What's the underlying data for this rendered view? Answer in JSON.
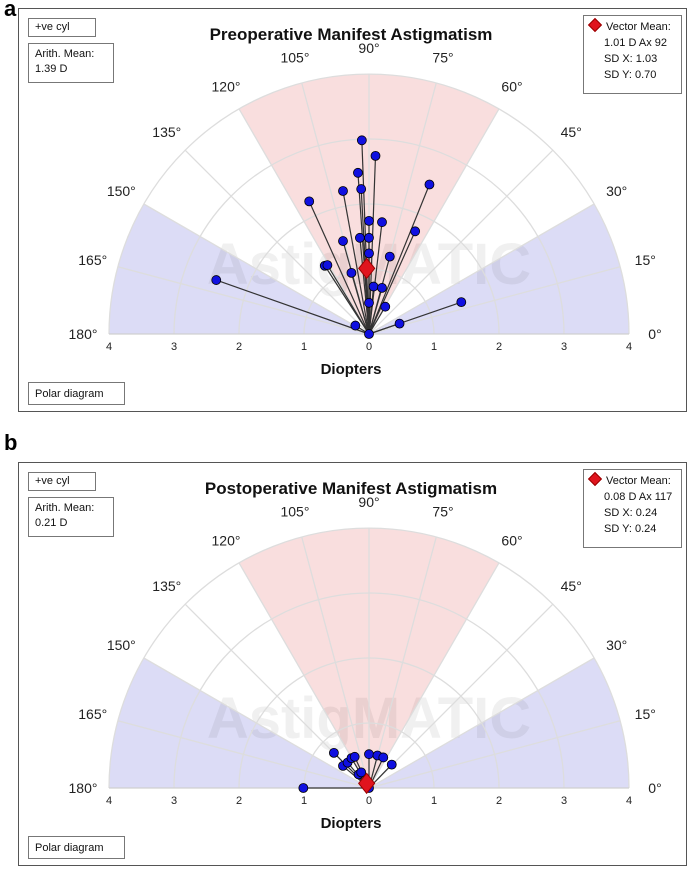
{
  "panels": [
    {
      "letter": "a",
      "title": "Preoperative Manifest Astigmatism",
      "cyl": "+ve cyl",
      "mean_label": "Arith. Mean:",
      "mean_value": "1.39 D",
      "legend": {
        "label": "Vector Mean:",
        "value": "1.01 D Ax 92",
        "sdx": "SD X: 1.03",
        "sdy": "SD Y: 0.70"
      },
      "footer": "Polar diagram"
    },
    {
      "letter": "b",
      "title": "Postoperative Manifest Astigmatism",
      "cyl": "+ve cyl",
      "mean_label": "Arith. Mean:",
      "mean_value": "0.21 D",
      "legend": {
        "label": "Vector Mean:",
        "value": "0.08 D Ax 117",
        "sdx": "SD X: 0.24",
        "sdy": "SD Y: 0.24"
      },
      "footer": "Polar diagram"
    }
  ],
  "watermark": "AstigMATIC",
  "colors": {
    "point": "#1010e0",
    "mean": "#e0141e",
    "red_zone": "#f9dede",
    "blue_zone": "#dcdcf6"
  },
  "chart_data": [
    {
      "type": "scatter",
      "title": "Preoperative Manifest Astigmatism",
      "xlabel": "Diopters",
      "rlim": [
        0,
        4
      ],
      "angle_ticks": [
        "180°",
        "165°",
        "150°",
        "135°",
        "120°",
        "105°",
        "90°",
        "75°",
        "60°",
        "45°",
        "30°",
        "15°",
        "0°"
      ],
      "x_ticks": [
        "4",
        "3",
        "2",
        "1",
        "0",
        "1",
        "2",
        "3",
        "4"
      ],
      "points": [
        [
          -0.11,
          2.98
        ],
        [
          0.1,
          2.74
        ],
        [
          -0.17,
          2.48
        ],
        [
          0.93,
          2.3
        ],
        [
          -0.4,
          2.2
        ],
        [
          -0.12,
          2.23
        ],
        [
          -0.92,
          2.04
        ],
        [
          0,
          1.74
        ],
        [
          0.2,
          1.72
        ],
        [
          0.71,
          1.58
        ],
        [
          -0.4,
          1.43
        ],
        [
          -0.14,
          1.48
        ],
        [
          0,
          1.48
        ],
        [
          0,
          1.24
        ],
        [
          0.32,
          1.19
        ],
        [
          -0.68,
          1.05
        ],
        [
          -0.64,
          1.06
        ],
        [
          -0.27,
          0.94
        ],
        [
          0.07,
          0.73
        ],
        [
          0.2,
          0.71
        ],
        [
          0,
          0.48
        ],
        [
          0.25,
          0.42
        ],
        [
          -2.35,
          0.83
        ],
        [
          1.42,
          0.49
        ],
        [
          0.47,
          0.16
        ],
        [
          -0.21,
          0.13
        ],
        [
          0,
          0
        ]
      ],
      "vector_mean": {
        "magnitude": 1.01,
        "axis": 92
      }
    },
    {
      "type": "scatter",
      "title": "Postoperative Manifest Astigmatism",
      "xlabel": "Diopters",
      "rlim": [
        0,
        4
      ],
      "angle_ticks": [
        "180°",
        "165°",
        "150°",
        "135°",
        "120°",
        "105°",
        "90°",
        "75°",
        "60°",
        "45°",
        "30°",
        "15°",
        "0°"
      ],
      "x_ticks": [
        "4",
        "3",
        "2",
        "1",
        "0",
        "1",
        "2",
        "3",
        "4"
      ],
      "points": [
        [
          -0.54,
          0.54
        ],
        [
          -0.4,
          0.34
        ],
        [
          -0.33,
          0.39
        ],
        [
          -0.27,
          0.46
        ],
        [
          -0.22,
          0.48
        ],
        [
          -0.16,
          0.21
        ],
        [
          -0.12,
          0.24
        ],
        [
          0,
          0.52
        ],
        [
          0.13,
          0.5
        ],
        [
          0.22,
          0.47
        ],
        [
          0.35,
          0.36
        ],
        [
          -1.01,
          0
        ],
        [
          0,
          0
        ]
      ],
      "vector_mean": {
        "magnitude": 0.08,
        "axis": 117
      }
    }
  ]
}
